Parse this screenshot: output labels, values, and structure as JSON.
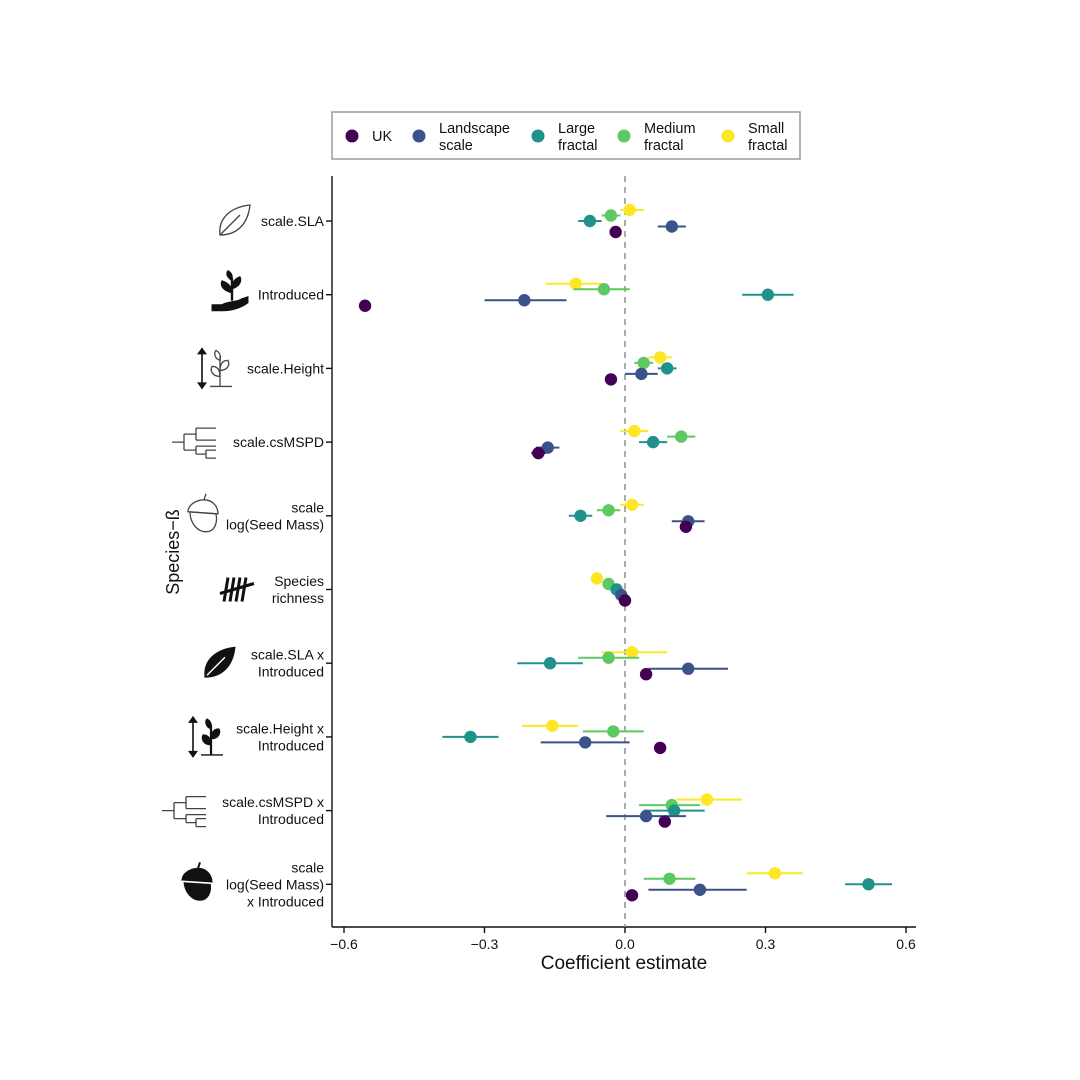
{
  "chart_data": {
    "type": "scatter",
    "subtype": "coefficient-plot-with-error-bars",
    "xlabel": "Coefficient estimate",
    "ylabel": "Species−ß",
    "xlim": [
      -0.63,
      0.62
    ],
    "xticks": [
      -0.6,
      -0.3,
      0.0,
      0.3,
      0.6
    ],
    "xtick_labels": [
      "−0.6",
      "−0.3",
      "0.0",
      "0.3",
      "0.6"
    ],
    "reference_line": {
      "x": 0,
      "style": "dashed"
    },
    "grid": false,
    "legend_position": "top",
    "series": [
      {
        "name": "UK",
        "legend_lines": [
          "UK"
        ],
        "color": "#440154"
      },
      {
        "name": "Landscape scale",
        "legend_lines": [
          "Landscape",
          "scale"
        ],
        "color": "#3b528b"
      },
      {
        "name": "Large fractal",
        "legend_lines": [
          "Large",
          "fractal"
        ],
        "color": "#21918c"
      },
      {
        "name": "Medium fractal",
        "legend_lines": [
          "Medium",
          "fractal"
        ],
        "color": "#5ec962"
      },
      {
        "name": "Small fractal",
        "legend_lines": [
          "Small",
          "fractal"
        ],
        "color": "#fde725"
      }
    ],
    "terms": [
      {
        "label_lines": [
          "scale.SLA"
        ],
        "icon": "leaf-outline-icon",
        "estimates": [
          {
            "series": "UK",
            "est": -0.02,
            "lo": -0.02,
            "hi": -0.02
          },
          {
            "series": "Landscape scale",
            "est": 0.1,
            "lo": 0.07,
            "hi": 0.13
          },
          {
            "series": "Large fractal",
            "est": -0.075,
            "lo": -0.1,
            "hi": -0.05
          },
          {
            "series": "Medium fractal",
            "est": -0.03,
            "lo": -0.05,
            "hi": -0.01
          },
          {
            "series": "Small fractal",
            "est": 0.01,
            "lo": -0.01,
            "hi": 0.04
          }
        ]
      },
      {
        "label_lines": [
          "Introduced"
        ],
        "icon": "seedling-hand-icon",
        "estimates": [
          {
            "series": "UK",
            "est": -0.555,
            "lo": -0.565,
            "hi": -0.545
          },
          {
            "series": "Landscape scale",
            "est": -0.215,
            "lo": -0.3,
            "hi": -0.125
          },
          {
            "series": "Large fractal",
            "est": 0.305,
            "lo": 0.25,
            "hi": 0.36
          },
          {
            "series": "Medium fractal",
            "est": -0.045,
            "lo": -0.11,
            "hi": 0.01
          },
          {
            "series": "Small fractal",
            "est": -0.105,
            "lo": -0.17,
            "hi": -0.05
          }
        ]
      },
      {
        "label_lines": [
          "scale.Height"
        ],
        "icon": "plant-height-outline-icon",
        "estimates": [
          {
            "series": "UK",
            "est": -0.03,
            "lo": -0.03,
            "hi": -0.03
          },
          {
            "series": "Landscape scale",
            "est": 0.035,
            "lo": 0.0,
            "hi": 0.07
          },
          {
            "series": "Large fractal",
            "est": 0.09,
            "lo": 0.07,
            "hi": 0.11
          },
          {
            "series": "Medium fractal",
            "est": 0.04,
            "lo": 0.02,
            "hi": 0.06
          },
          {
            "series": "Small fractal",
            "est": 0.075,
            "lo": 0.05,
            "hi": 0.1
          }
        ]
      },
      {
        "label_lines": [
          "scale.csMSPD"
        ],
        "icon": "phylogeny-outline-icon",
        "estimates": [
          {
            "series": "UK",
            "est": -0.185,
            "lo": -0.2,
            "hi": -0.17
          },
          {
            "series": "Landscape scale",
            "est": -0.165,
            "lo": -0.19,
            "hi": -0.14
          },
          {
            "series": "Large fractal",
            "est": 0.06,
            "lo": 0.03,
            "hi": 0.09
          },
          {
            "series": "Medium fractal",
            "est": 0.12,
            "lo": 0.09,
            "hi": 0.15
          },
          {
            "series": "Small fractal",
            "est": 0.02,
            "lo": -0.01,
            "hi": 0.05
          }
        ]
      },
      {
        "label_lines": [
          "scale",
          "log(Seed Mass)"
        ],
        "icon": "acorn-outline-icon",
        "estimates": [
          {
            "series": "UK",
            "est": 0.13,
            "lo": 0.12,
            "hi": 0.14
          },
          {
            "series": "Landscape scale",
            "est": 0.135,
            "lo": 0.1,
            "hi": 0.17
          },
          {
            "series": "Large fractal",
            "est": -0.095,
            "lo": -0.12,
            "hi": -0.07
          },
          {
            "series": "Medium fractal",
            "est": -0.035,
            "lo": -0.06,
            "hi": -0.01
          },
          {
            "series": "Small fractal",
            "est": 0.015,
            "lo": -0.01,
            "hi": 0.04
          }
        ]
      },
      {
        "label_lines": [
          "Species",
          "richness"
        ],
        "icon": "tally-marks-icon",
        "estimates": [
          {
            "series": "UK",
            "est": 0.0,
            "lo": -0.01,
            "hi": 0.01
          },
          {
            "series": "Landscape scale",
            "est": -0.008,
            "lo": -0.015,
            "hi": 0.0
          },
          {
            "series": "Large fractal",
            "est": -0.018,
            "lo": -0.025,
            "hi": -0.01
          },
          {
            "series": "Medium fractal",
            "est": -0.035,
            "lo": -0.045,
            "hi": -0.025
          },
          {
            "series": "Small fractal",
            "est": -0.06,
            "lo": -0.07,
            "hi": -0.05
          }
        ]
      },
      {
        "label_lines": [
          "scale.SLA x",
          "Introduced"
        ],
        "icon": "leaf-filled-icon",
        "estimates": [
          {
            "series": "UK",
            "est": 0.045,
            "lo": 0.035,
            "hi": 0.055
          },
          {
            "series": "Landscape scale",
            "est": 0.135,
            "lo": 0.05,
            "hi": 0.22
          },
          {
            "series": "Large fractal",
            "est": -0.16,
            "lo": -0.23,
            "hi": -0.09
          },
          {
            "series": "Medium fractal",
            "est": -0.035,
            "lo": -0.1,
            "hi": 0.03
          },
          {
            "series": "Small fractal",
            "est": 0.015,
            "lo": -0.05,
            "hi": 0.09
          }
        ]
      },
      {
        "label_lines": [
          "scale.Height x",
          "Introduced"
        ],
        "icon": "plant-height-filled-icon",
        "estimates": [
          {
            "series": "UK",
            "est": 0.075,
            "lo": 0.065,
            "hi": 0.085
          },
          {
            "series": "Landscape scale",
            "est": -0.085,
            "lo": -0.18,
            "hi": 0.01
          },
          {
            "series": "Large fractal",
            "est": -0.33,
            "lo": -0.39,
            "hi": -0.27
          },
          {
            "series": "Medium fractal",
            "est": -0.025,
            "lo": -0.09,
            "hi": 0.04
          },
          {
            "series": "Small fractal",
            "est": -0.155,
            "lo": -0.22,
            "hi": -0.1
          }
        ]
      },
      {
        "label_lines": [
          "scale.csMSPD x",
          "Introduced"
        ],
        "icon": "phylogeny-outline-icon",
        "estimates": [
          {
            "series": "UK",
            "est": 0.085,
            "lo": 0.075,
            "hi": 0.095
          },
          {
            "series": "Landscape scale",
            "est": 0.045,
            "lo": -0.04,
            "hi": 0.13
          },
          {
            "series": "Large fractal",
            "est": 0.105,
            "lo": 0.04,
            "hi": 0.17
          },
          {
            "series": "Medium fractal",
            "est": 0.1,
            "lo": 0.03,
            "hi": 0.16
          },
          {
            "series": "Small fractal",
            "est": 0.175,
            "lo": 0.11,
            "hi": 0.25
          }
        ]
      },
      {
        "label_lines": [
          "scale",
          "log(Seed Mass)",
          "x Introduced"
        ],
        "icon": "acorn-filled-icon",
        "estimates": [
          {
            "series": "UK",
            "est": 0.015,
            "lo": 0.005,
            "hi": 0.025
          },
          {
            "series": "Landscape scale",
            "est": 0.16,
            "lo": 0.05,
            "hi": 0.26
          },
          {
            "series": "Large fractal",
            "est": 0.52,
            "lo": 0.47,
            "hi": 0.57
          },
          {
            "series": "Medium fractal",
            "est": 0.095,
            "lo": 0.04,
            "hi": 0.15
          },
          {
            "series": "Small fractal",
            "est": 0.32,
            "lo": 0.26,
            "hi": 0.38
          }
        ]
      }
    ]
  }
}
